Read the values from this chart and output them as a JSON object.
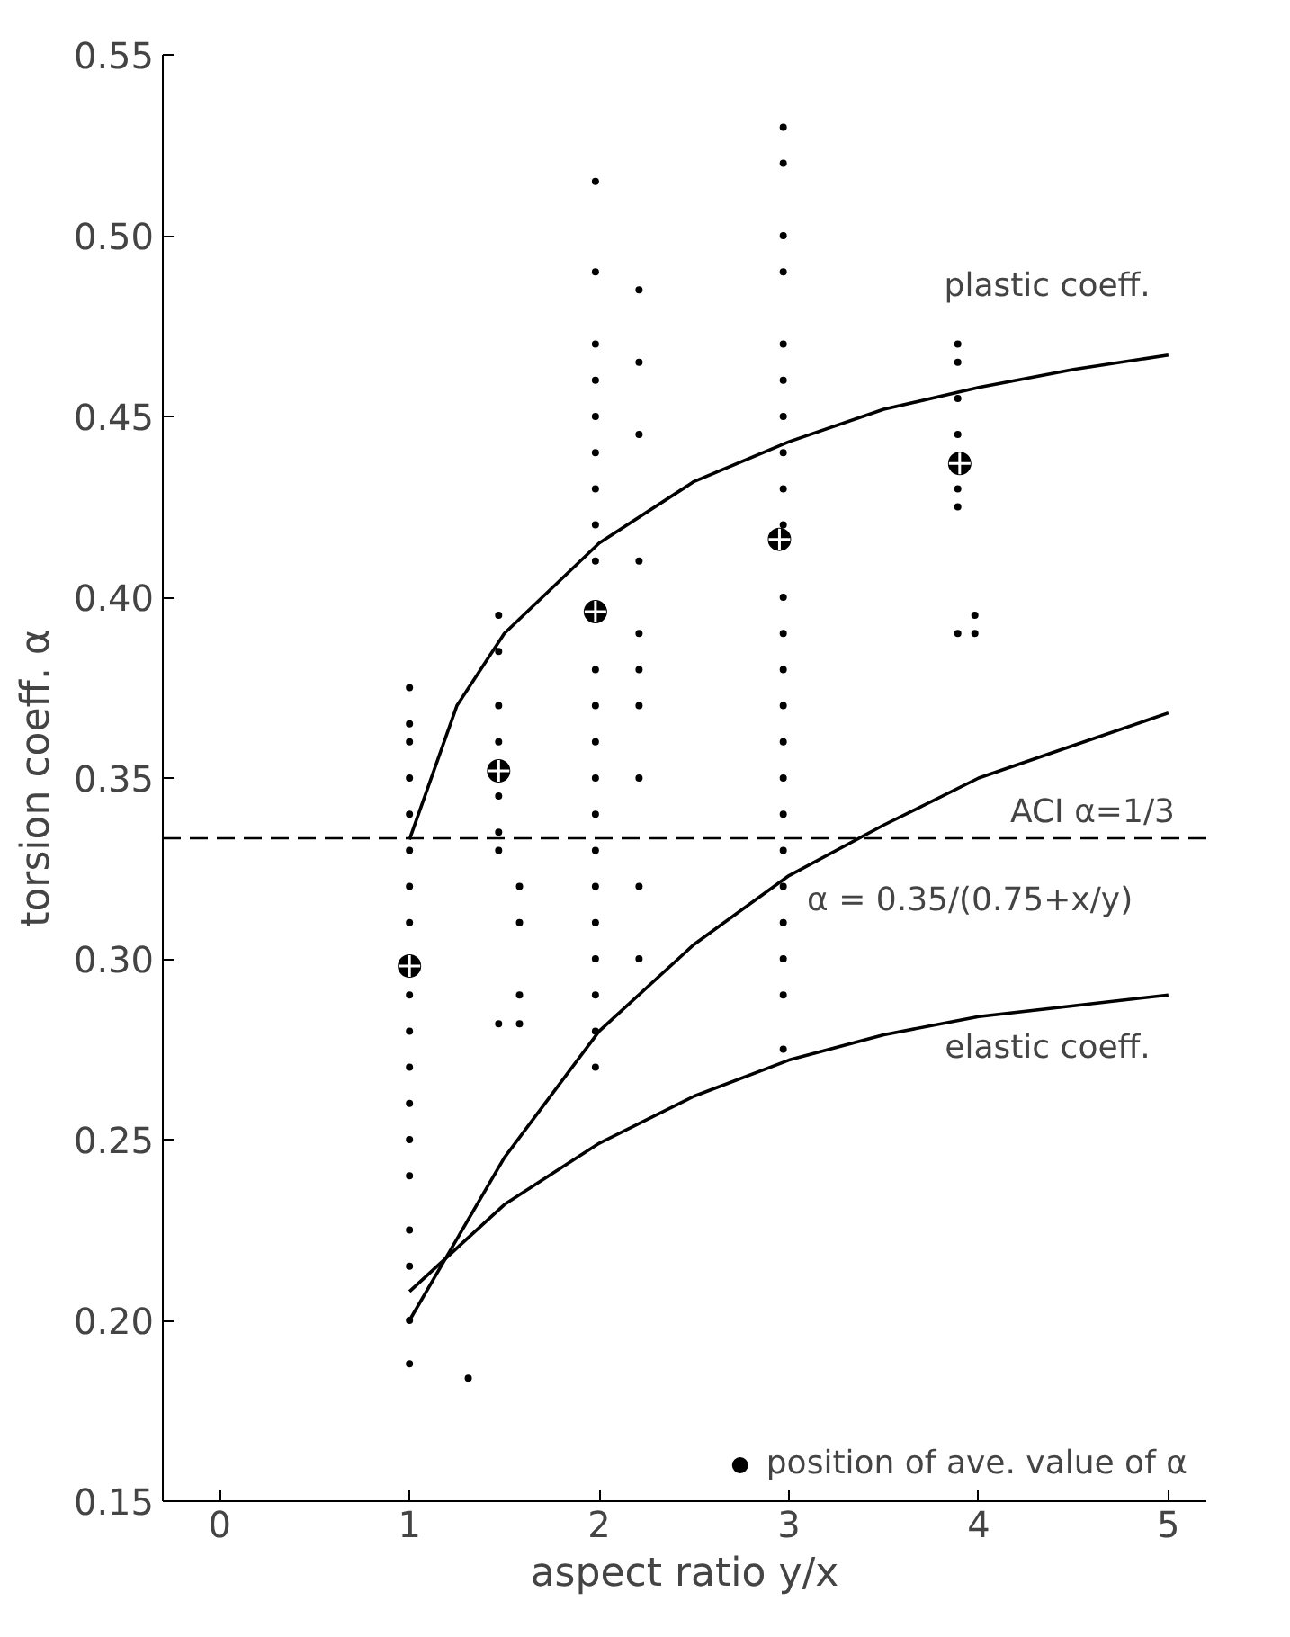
{
  "chart_data": {
    "type": "line",
    "xlabel": "aspect ratio y/x",
    "ylabel": "torsion coeff. α",
    "xlim": [
      -0.3,
      5.2
    ],
    "ylim": [
      0.15,
      0.55
    ],
    "xticks": [
      0,
      1,
      2,
      3,
      4,
      5
    ],
    "yticks": [
      0.15,
      {
        "value": 0.2,
        "label": "0.20"
      },
      0.25,
      {
        "value": 0.3,
        "label": "0.30"
      },
      0.35,
      {
        "value": 0.4,
        "label": "0.40"
      },
      0.45,
      {
        "value": 0.5,
        "label": "0.50"
      },
      0.55
    ],
    "grid": false,
    "legend": "bottom right",
    "ref_lines": [
      {
        "axis": "y",
        "value": 0.3333333,
        "line_style": "dashed",
        "color": "#000000"
      }
    ],
    "annotations": [
      {
        "text": "ACI α=1/3",
        "x": 4.6,
        "y": 0.3333333
      }
    ],
    "series": [
      {
        "name": "plastic coeff.",
        "color": "#000000",
        "marker": "none",
        "x": [
          1,
          1.25,
          1.5,
          2,
          2.5,
          3,
          3.5,
          4,
          4.5,
          5
        ],
        "values": [
          0.333,
          0.37,
          0.39,
          0.415,
          0.432,
          0.443,
          0.452,
          0.458,
          0.463,
          0.467
        ]
      },
      {
        "name": "α = 0.35/(0.75+x/y)",
        "color": "#000000",
        "marker": "none",
        "x": [
          1,
          1.5,
          2,
          2.5,
          3,
          3.5,
          4,
          4.5,
          5
        ],
        "values": [
          0.2,
          0.245,
          0.28,
          0.304,
          0.323,
          0.337,
          0.35,
          0.359,
          0.368
        ]
      },
      {
        "name": "elastic coeff.",
        "color": "#000000",
        "marker": "none",
        "x": [
          1,
          1.5,
          2,
          2.5,
          3,
          3.5,
          4,
          4.5,
          5
        ],
        "values": [
          0.208,
          0.232,
          0.249,
          0.262,
          0.272,
          0.279,
          0.284,
          0.287,
          0.29
        ]
      },
      {
        "type": "scatter",
        "color": "#000000",
        "marker": "circle",
        "x": [
          1,
          1,
          1,
          1,
          1,
          1,
          1,
          1,
          1,
          1,
          1,
          1,
          1,
          1,
          1,
          1,
          1,
          1,
          1.31,
          1.47,
          1.47,
          1.47,
          1.47,
          1.47,
          1.47,
          1.47,
          1.47,
          1.58,
          1.58,
          1.58,
          1.58,
          1.98,
          1.98,
          1.98,
          1.98,
          1.98,
          1.98,
          1.98,
          1.98,
          1.98,
          1.98,
          1.98,
          1.98,
          1.98,
          1.98,
          1.98,
          1.98,
          1.98,
          1.98,
          1.98,
          1.98,
          1.98,
          2.21,
          2.21,
          2.21,
          2.21,
          2.21,
          2.21,
          2.21,
          2.21,
          2.21,
          2.21,
          2.97,
          2.97,
          2.97,
          2.97,
          2.97,
          2.97,
          2.97,
          2.97,
          2.97,
          2.97,
          2.97,
          2.97,
          2.97,
          2.97,
          2.97,
          2.97,
          2.97,
          2.97,
          2.97,
          2.97,
          2.97,
          2.97,
          2.97,
          3.89,
          3.89,
          3.89,
          3.89,
          3.89,
          3.89,
          3.89,
          3.98,
          3.98
        ],
        "values": [
          0.188,
          0.2,
          0.215,
          0.225,
          0.24,
          0.25,
          0.26,
          0.27,
          0.28,
          0.29,
          0.31,
          0.32,
          0.33,
          0.34,
          0.35,
          0.36,
          0.365,
          0.375,
          0.184,
          0.395,
          0.385,
          0.37,
          0.36,
          0.345,
          0.335,
          0.33,
          0.282,
          0.32,
          0.31,
          0.29,
          0.282,
          0.515,
          0.49,
          0.47,
          0.46,
          0.45,
          0.44,
          0.43,
          0.42,
          0.41,
          0.38,
          0.37,
          0.36,
          0.35,
          0.34,
          0.33,
          0.32,
          0.31,
          0.3,
          0.29,
          0.28,
          0.27,
          0.485,
          0.465,
          0.445,
          0.41,
          0.39,
          0.38,
          0.37,
          0.35,
          0.32,
          0.3,
          0.53,
          0.52,
          0.5,
          0.49,
          0.47,
          0.46,
          0.45,
          0.44,
          0.43,
          0.42,
          0.4,
          0.39,
          0.38,
          0.37,
          0.36,
          0.35,
          0.34,
          0.33,
          0.32,
          0.31,
          0.3,
          0.29,
          0.275,
          0.47,
          0.465,
          0.455,
          0.445,
          0.43,
          0.425,
          0.39,
          0.395,
          0.39
        ]
      },
      {
        "name": "position of ave. value of α",
        "type": "scatter",
        "color": "#000000",
        "marker": "circle",
        "x": [
          1,
          1.47,
          1.98,
          2.95,
          3.9
        ],
        "values": [
          0.298,
          0.352,
          0.396,
          0.416,
          0.437
        ]
      }
    ]
  }
}
